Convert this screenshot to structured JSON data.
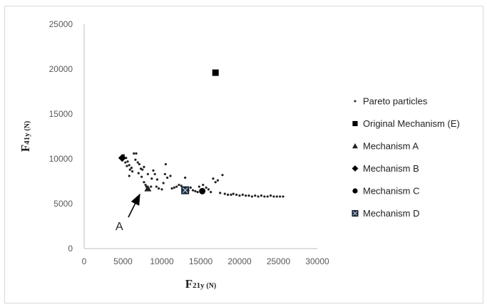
{
  "chart_data": {
    "type": "scatter",
    "xlabel": {
      "main": "F",
      "sub": "21y",
      "unit": "(N)"
    },
    "ylabel": {
      "main": "F",
      "sub": "41y",
      "unit": "(N)"
    },
    "xlim": [
      0,
      30000
    ],
    "ylim": [
      0,
      25000
    ],
    "xticks": [
      0,
      5000,
      10000,
      15000,
      20000,
      25000,
      30000
    ],
    "yticks": [
      0,
      5000,
      10000,
      15000,
      20000,
      25000
    ],
    "x_tick_labels": [
      "0",
      "5000",
      "10000",
      "15000",
      "20000",
      "25000",
      "30000"
    ],
    "y_tick_labels": [
      "0",
      "5000",
      "10000",
      "15000",
      "20000",
      "25000"
    ],
    "grid": false,
    "legend_position": "right",
    "series": [
      {
        "name": "Pareto particles",
        "marker": "dot",
        "points": [
          [
            5100,
            10400
          ],
          [
            5400,
            10100
          ],
          [
            5600,
            9700
          ],
          [
            5800,
            9300
          ],
          [
            6100,
            9000
          ],
          [
            5300,
            9600
          ],
          [
            5500,
            9200
          ],
          [
            5900,
            8800
          ],
          [
            5800,
            8100
          ],
          [
            6200,
            8600
          ],
          [
            6400,
            10600
          ],
          [
            6700,
            10600
          ],
          [
            6600,
            9900
          ],
          [
            6900,
            9600
          ],
          [
            7100,
            9400
          ],
          [
            7300,
            8900
          ],
          [
            7000,
            8400
          ],
          [
            7500,
            8800
          ],
          [
            7700,
            9100
          ],
          [
            7400,
            8000
          ],
          [
            7700,
            7400
          ],
          [
            7900,
            7100
          ],
          [
            8000,
            6900
          ],
          [
            8300,
            6700
          ],
          [
            8600,
            6900
          ],
          [
            8900,
            8700
          ],
          [
            9100,
            8300
          ],
          [
            9400,
            7700
          ],
          [
            8700,
            7800
          ],
          [
            8200,
            8300
          ],
          [
            9300,
            6900
          ],
          [
            9600,
            6700
          ],
          [
            10000,
            6600
          ],
          [
            10200,
            7300
          ],
          [
            10500,
            9400
          ],
          [
            10400,
            8300
          ],
          [
            10700,
            7900
          ],
          [
            11100,
            8100
          ],
          [
            11300,
            6700
          ],
          [
            11600,
            6800
          ],
          [
            11900,
            6900
          ],
          [
            12200,
            7100
          ],
          [
            12500,
            7000
          ],
          [
            12800,
            6600
          ],
          [
            13000,
            7900
          ],
          [
            13400,
            6500
          ],
          [
            13700,
            6800
          ],
          [
            14000,
            6500
          ],
          [
            14300,
            6400
          ],
          [
            14600,
            6300
          ],
          [
            14800,
            6900
          ],
          [
            15300,
            7100
          ],
          [
            15700,
            6800
          ],
          [
            16000,
            6600
          ],
          [
            16300,
            6300
          ],
          [
            16600,
            7800
          ],
          [
            16900,
            7400
          ],
          [
            17200,
            7600
          ],
          [
            17500,
            6200
          ],
          [
            17800,
            8200
          ],
          [
            18100,
            6100
          ],
          [
            18500,
            6000
          ],
          [
            18900,
            6000
          ],
          [
            19200,
            6100
          ],
          [
            19600,
            6000
          ],
          [
            20000,
            5900
          ],
          [
            20400,
            6000
          ],
          [
            20800,
            5900
          ],
          [
            21200,
            5900
          ],
          [
            21600,
            5800
          ],
          [
            22000,
            5900
          ],
          [
            22400,
            5800
          ],
          [
            22800,
            5900
          ],
          [
            23200,
            5800
          ],
          [
            23600,
            5800
          ],
          [
            24000,
            5900
          ],
          [
            24400,
            5800
          ],
          [
            24800,
            5800
          ],
          [
            25200,
            5800
          ],
          [
            25600,
            5800
          ]
        ]
      },
      {
        "name": "Original Mechanism (E)",
        "marker": "square",
        "points": [
          [
            16900,
            19600
          ]
        ]
      },
      {
        "name": "Mechanism A",
        "marker": "triangle",
        "points": [
          [
            8200,
            6700
          ]
        ]
      },
      {
        "name": "Mechanism B",
        "marker": "diamond",
        "points": [
          [
            4900,
            10100
          ]
        ]
      },
      {
        "name": "Mechanism C",
        "marker": "circle",
        "points": [
          [
            15200,
            6400
          ]
        ]
      },
      {
        "name": "Mechanism D",
        "marker": "square-x",
        "points": [
          [
            13000,
            6500
          ]
        ]
      }
    ],
    "annotations": [
      {
        "text": "A",
        "target": [
          7700,
          6500
        ]
      }
    ]
  }
}
